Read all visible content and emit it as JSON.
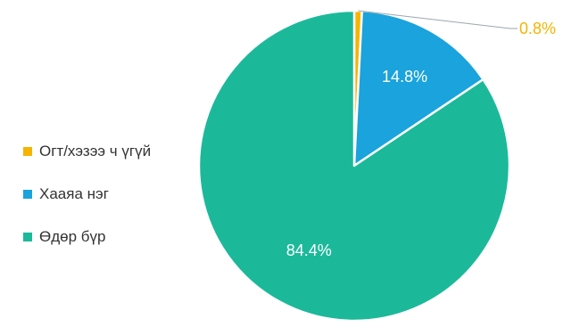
{
  "chart_data": {
    "type": "pie",
    "slices": [
      {
        "label": "Огт/хэзээ ч үгүй",
        "value": 0.8,
        "display": "0.8%",
        "color": "#F5B400"
      },
      {
        "label": "Хааяа нэг",
        "value": 14.8,
        "display": "14.8%",
        "color": "#1AA3DC"
      },
      {
        "label": "Өдөр бүр",
        "value": 84.4,
        "display": "84.4%",
        "color": "#1BB99A"
      }
    ],
    "legend_position": "left",
    "start_angle_deg": 0,
    "direction": "clockwise"
  }
}
